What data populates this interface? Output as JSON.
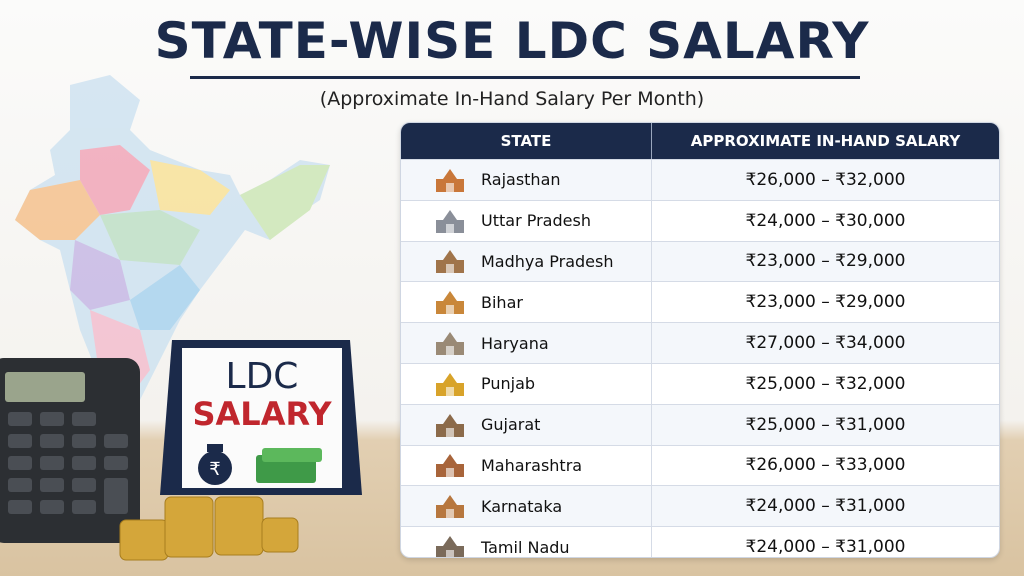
{
  "header": {
    "title": "STATE-WISE LDC SALARY",
    "subtitle": "(Approximate In-Hand Salary Per Month)"
  },
  "sign": {
    "line1": "LDC",
    "line2": "SALARY",
    "currency": "₹"
  },
  "table": {
    "columns": [
      "STATE",
      "APPROXIMATE IN-HAND SALARY"
    ],
    "rows": [
      [
        "Rajasthan",
        "₹26,000 – ₹32,000"
      ],
      [
        "Uttar Pradesh",
        "₹24,000 – ₹30,000"
      ],
      [
        "Madhya Pradesh",
        "₹23,000 – ₹29,000"
      ],
      [
        "Bihar",
        "₹23,000 – ₹29,000"
      ],
      [
        "Haryana",
        "₹27,000 – ₹34,000"
      ],
      [
        "Punjab",
        "₹25,000 – ₹32,000"
      ],
      [
        "Gujarat",
        "₹25,000 – ₹31,000"
      ],
      [
        "Maharashtra",
        "₹26,000 – ₹33,000"
      ],
      [
        "Karnataka",
        "₹24,000 – ₹31,000"
      ],
      [
        "Tamil Nadu",
        "₹24,000 – ₹31,000"
      ]
    ]
  }
}
